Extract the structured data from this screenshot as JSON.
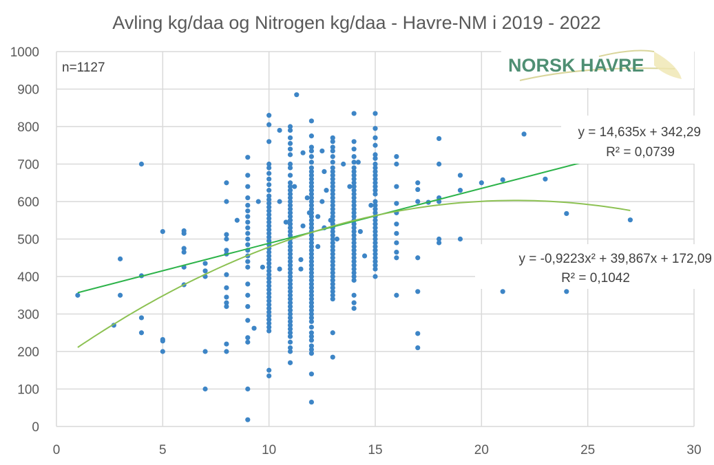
{
  "chart_data": {
    "type": "scatter",
    "title": "Avling kg/daa og Nitrogen kg/daa - Havre-NM i 2019 - 2022",
    "annotation": "n=1127",
    "logo_text": "NORSK HAVRE",
    "xlim": [
      0,
      30
    ],
    "ylim": [
      0,
      1000
    ],
    "xticks": [
      0,
      5,
      10,
      15,
      20,
      25,
      30
    ],
    "yticks": [
      0,
      100,
      200,
      300,
      400,
      500,
      600,
      700,
      800,
      900,
      1000
    ],
    "grid": true,
    "colors": {
      "points": "#3d85c6",
      "linear": "#2db34a",
      "poly": "#8cc152",
      "grid": "#d9d9d9",
      "logo": "#4f8f73"
    },
    "trendlines": [
      {
        "type": "linear",
        "coef": [
          342.29,
          14.635
        ],
        "xrange": [
          1,
          25
        ],
        "equation": "y = 14,635x + 342,29",
        "r2": "R² = 0,0739"
      },
      {
        "type": "polynomial",
        "coef": [
          172.09,
          39.867,
          -0.9223
        ],
        "xrange": [
          1,
          27
        ],
        "equation": "y = -0,9223x² + 39,867x + 172,09",
        "r2": "R² = 0,1042"
      }
    ],
    "columns": [
      {
        "x": 9,
        "y": [
          718,
          670,
          640,
          610,
          590,
          575,
          560,
          545,
          530,
          515,
          500,
          485,
          470,
          455,
          440,
          425,
          380,
          350,
          320,
          283,
          237,
          225,
          100,
          18
        ]
      },
      {
        "x": 10,
        "y": [
          830,
          805,
          760,
          700,
          690,
          675,
          660,
          645,
          630,
          615,
          605,
          595,
          585,
          575,
          565,
          555,
          545,
          535,
          525,
          515,
          505,
          495,
          485,
          475,
          465,
          455,
          445,
          435,
          425,
          415,
          405,
          395,
          385,
          375,
          365,
          355,
          345,
          335,
          325,
          315,
          305,
          295,
          285,
          275,
          265,
          255,
          150,
          135
        ]
      },
      {
        "x": 11,
        "y": [
          800,
          790,
          770,
          755,
          740,
          725,
          700,
          690,
          670,
          650,
          640,
          630,
          620,
          610,
          600,
          590,
          580,
          570,
          560,
          550,
          540,
          530,
          520,
          510,
          500,
          490,
          480,
          470,
          460,
          450,
          440,
          430,
          420,
          410,
          400,
          390,
          380,
          370,
          360,
          350,
          340,
          330,
          320,
          310,
          300,
          290,
          280,
          270,
          260,
          250,
          240,
          225,
          210,
          200,
          170
        ]
      },
      {
        "x": 12,
        "y": [
          815,
          775,
          745,
          735,
          720,
          705,
          690,
          680,
          670,
          660,
          650,
          640,
          630,
          620,
          610,
          600,
          590,
          580,
          570,
          560,
          550,
          540,
          530,
          520,
          510,
          500,
          490,
          480,
          470,
          460,
          450,
          440,
          430,
          420,
          410,
          400,
          390,
          380,
          370,
          360,
          350,
          340,
          330,
          320,
          310,
          300,
          290,
          280,
          265,
          250,
          240,
          230,
          215,
          205,
          195,
          140,
          65
        ]
      },
      {
        "x": 13,
        "y": [
          770,
          760,
          745,
          735,
          720,
          705,
          690,
          680,
          670,
          660,
          650,
          640,
          630,
          620,
          610,
          600,
          590,
          580,
          570,
          560,
          550,
          540,
          530,
          520,
          510,
          500,
          490,
          480,
          470,
          460,
          450,
          440,
          430,
          420,
          410,
          400,
          390,
          380,
          370,
          360,
          350,
          340,
          250,
          185
        ]
      },
      {
        "x": 14,
        "y": [
          835,
          760,
          740,
          720,
          705,
          690,
          680,
          670,
          660,
          650,
          640,
          630,
          620,
          610,
          600,
          590,
          580,
          570,
          560,
          550,
          540,
          530,
          520,
          510,
          500,
          490,
          480,
          470,
          460,
          450,
          440,
          430,
          420,
          410,
          400,
          390,
          350,
          330,
          315
        ]
      },
      {
        "x": 15,
        "y": [
          835,
          795,
          770,
          750,
          725,
          715,
          700,
          690,
          680,
          670,
          660,
          650,
          640,
          630,
          620,
          600,
          590,
          580,
          570,
          560,
          550,
          540,
          530,
          520,
          510,
          500,
          490,
          480,
          470,
          460,
          450,
          440,
          430,
          420,
          400
        ]
      }
    ],
    "points": [
      [
        1,
        350
      ],
      [
        2.7,
        270
      ],
      [
        3,
        447
      ],
      [
        3,
        350
      ],
      [
        4,
        700
      ],
      [
        4,
        402
      ],
      [
        4,
        290
      ],
      [
        4,
        250
      ],
      [
        5,
        520
      ],
      [
        5,
        232
      ],
      [
        5,
        228
      ],
      [
        5,
        200
      ],
      [
        6,
        522
      ],
      [
        6,
        515
      ],
      [
        6,
        475
      ],
      [
        6,
        465
      ],
      [
        6,
        425
      ],
      [
        6,
        378
      ],
      [
        7,
        435
      ],
      [
        7,
        415
      ],
      [
        7,
        400
      ],
      [
        7,
        200
      ],
      [
        7,
        100
      ],
      [
        8,
        650
      ],
      [
        8,
        600
      ],
      [
        8,
        512
      ],
      [
        8,
        500
      ],
      [
        8,
        470
      ],
      [
        8,
        460
      ],
      [
        8,
        405
      ],
      [
        8,
        370
      ],
      [
        8,
        345
      ],
      [
        8,
        330
      ],
      [
        8,
        320
      ],
      [
        8,
        220
      ],
      [
        8,
        200
      ],
      [
        8.5,
        550
      ],
      [
        9.3,
        262
      ],
      [
        9.5,
        600
      ],
      [
        9.7,
        425
      ],
      [
        10.5,
        600
      ],
      [
        10.8,
        545
      ],
      [
        10.5,
        420
      ],
      [
        10.5,
        790
      ],
      [
        11.2,
        640
      ],
      [
        11.3,
        885
      ],
      [
        11.6,
        730
      ],
      [
        11.6,
        535
      ],
      [
        11.8,
        610
      ],
      [
        11.9,
        570
      ],
      [
        11.5,
        420
      ],
      [
        11.5,
        445
      ],
      [
        12.3,
        480
      ],
      [
        12.3,
        560
      ],
      [
        12.5,
        600
      ],
      [
        12.5,
        735
      ],
      [
        12.6,
        530
      ],
      [
        12.6,
        680
      ],
      [
        12.7,
        630
      ],
      [
        12.9,
        550
      ],
      [
        13.2,
        500
      ],
      [
        13.5,
        700
      ],
      [
        13.8,
        640
      ],
      [
        14.2,
        705
      ],
      [
        14.3,
        520
      ],
      [
        14.5,
        455
      ],
      [
        14.8,
        590
      ],
      [
        16,
        720
      ],
      [
        16,
        700
      ],
      [
        16,
        640
      ],
      [
        16,
        595
      ],
      [
        16,
        570
      ],
      [
        16,
        540
      ],
      [
        16,
        515
      ],
      [
        16,
        490
      ],
      [
        16,
        465
      ],
      [
        16,
        450
      ],
      [
        16,
        350
      ],
      [
        17,
        650
      ],
      [
        17,
        632
      ],
      [
        17,
        600
      ],
      [
        17,
        450
      ],
      [
        17,
        360
      ],
      [
        17,
        248
      ],
      [
        17,
        210
      ],
      [
        17.5,
        598
      ],
      [
        18,
        768
      ],
      [
        18,
        700
      ],
      [
        18,
        610
      ],
      [
        18,
        600
      ],
      [
        18,
        500
      ],
      [
        18,
        490
      ],
      [
        19,
        670
      ],
      [
        19,
        630
      ],
      [
        19,
        500
      ],
      [
        20,
        650
      ],
      [
        21,
        658
      ],
      [
        21,
        360
      ],
      [
        22,
        780
      ],
      [
        23,
        660
      ],
      [
        24,
        568
      ],
      [
        24,
        360
      ],
      [
        27,
        551
      ]
    ]
  }
}
